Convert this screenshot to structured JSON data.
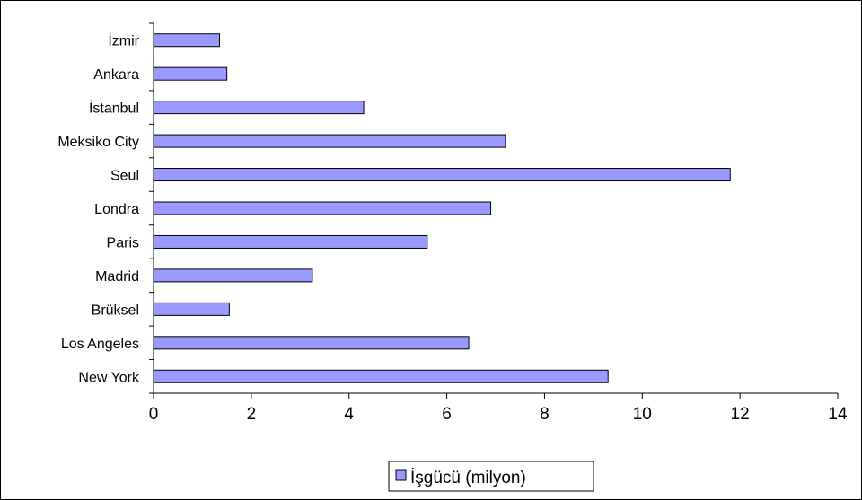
{
  "chart_data": {
    "type": "bar",
    "orientation": "horizontal",
    "categories": [
      "İzmir",
      "Ankara",
      "İstanbul",
      "Meksiko City",
      "Seul",
      "Londra",
      "Paris",
      "Madrid",
      "Brüksel",
      "Los Angeles",
      "New York"
    ],
    "series": [
      {
        "name": "İşgücü (milyon)",
        "values": [
          1.35,
          1.5,
          4.3,
          7.2,
          11.8,
          6.9,
          5.6,
          3.25,
          1.55,
          6.45,
          9.3
        ],
        "color": "#9999ff"
      }
    ],
    "xlim": [
      0,
      14
    ],
    "xticks": [
      0,
      2,
      4,
      6,
      8,
      10,
      12,
      14
    ],
    "grid": false,
    "legend_position": "bottom"
  }
}
